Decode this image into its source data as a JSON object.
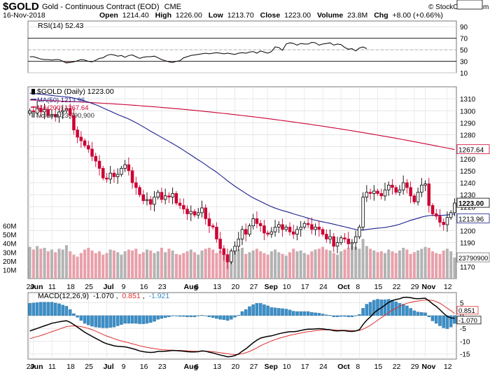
{
  "header": {
    "symbol": "$GOLD",
    "name": "Gold - Continuous Contract (EOD)",
    "exchange": "CME",
    "date": "16-Nov-2018",
    "open_label": "Open",
    "open": "1214.40",
    "high_label": "High",
    "high": "1226.00",
    "low_label": "Low",
    "low": "1213.70",
    "close_label": "Close",
    "close": "1223.00",
    "volume_label": "Volume",
    "volume": "23.8M",
    "chg_label": "Chg",
    "chg": "+8.00 (+0.66%)",
    "credit": "© StockCharts.com"
  },
  "colors": {
    "up": "#000000",
    "down": "#cc0033",
    "ma50": "#1a1f8c",
    "ma200": "#cc0033",
    "vol_up": "#b3b3b3",
    "vol_down": "#e8a0aa",
    "macd_line": "#000000",
    "macd_signal": "#e03030",
    "macd_hist": "#3a8fc8",
    "rsi_fill": "#a87a7a"
  },
  "chart_data": [
    {
      "type": "line",
      "panel": "rsi",
      "legend": "RSI(14) 52.43",
      "last_label": "52.43",
      "ylim": [
        10,
        100
      ],
      "y_ticks": [
        "90",
        "70",
        "50",
        "30",
        "10"
      ],
      "overbought": 70,
      "oversold": 30,
      "values": [
        38,
        38,
        36,
        34,
        33,
        33,
        32,
        33,
        33,
        30,
        27,
        28,
        29,
        31,
        33,
        32,
        30,
        29,
        32,
        35,
        36,
        40,
        42,
        41,
        39,
        40,
        37,
        40,
        41,
        38,
        35,
        37,
        38,
        38,
        39,
        36,
        33,
        31,
        29,
        28,
        30,
        31,
        36,
        38,
        40,
        41,
        42,
        43,
        44,
        43,
        44,
        45,
        44,
        43,
        44,
        43,
        42,
        44,
        45,
        44,
        46,
        47,
        44,
        48,
        46,
        44,
        47,
        55,
        54,
        49,
        60,
        62,
        61,
        58,
        61,
        60,
        60,
        63,
        62,
        58,
        60,
        61,
        62,
        58,
        60,
        59,
        54,
        51,
        52,
        48,
        53,
        55,
        52
      ]
    },
    {
      "type": "candlestick",
      "panel": "price",
      "legend": "$GOLD (Daily) 1223.00",
      "ma50_legend": "MA(50) 1213.96",
      "ma200_legend": "MA(200) 1267.64",
      "volume_legend": "Volume 23,790,900",
      "last_price_label": "1223.00",
      "ma200_label": "1267.64",
      "ma50_label": "1213.96",
      "ylim": [
        1160,
        1320
      ],
      "y_ticks": [
        "1310",
        "1300",
        "1290",
        "1280",
        "1270",
        "1260",
        "1250",
        "1240",
        "1230",
        "1220",
        "1210",
        "1200",
        "1190",
        "1180",
        "1170"
      ],
      "x_labels": [
        {
          "i": 0,
          "text": "29",
          "bold": false
        },
        {
          "i": 1,
          "text": "Jun",
          "bold": true
        },
        {
          "i": 6,
          "text": "11",
          "bold": false
        },
        {
          "i": 11,
          "text": "18",
          "bold": false
        },
        {
          "i": 16,
          "text": "25",
          "bold": false
        },
        {
          "i": 21,
          "text": "Jul",
          "bold": true
        },
        {
          "i": 26,
          "text": "9",
          "bold": false
        },
        {
          "i": 31,
          "text": "16",
          "bold": false
        },
        {
          "i": 36,
          "text": "23",
          "bold": false
        },
        {
          "i": 43,
          "text": "Aug",
          "bold": true
        },
        {
          "i": 46,
          "text": "6",
          "bold": false
        },
        {
          "i": 51,
          "text": "13",
          "bold": false
        },
        {
          "i": 56,
          "text": "20",
          "bold": false
        },
        {
          "i": 61,
          "text": "27",
          "bold": false
        },
        {
          "i": 65,
          "text": "Sep",
          "bold": true
        },
        {
          "i": 70,
          "text": "10",
          "bold": false
        },
        {
          "i": 75,
          "text": "17",
          "bold": false
        },
        {
          "i": 80,
          "text": "24",
          "bold": false
        },
        {
          "i": 85,
          "text": "Oct",
          "bold": true
        },
        {
          "i": 90,
          "text": "8",
          "bold": false
        },
        {
          "i": 95,
          "text": "15",
          "bold": false
        },
        {
          "i": 100,
          "text": "22",
          "bold": false
        },
        {
          "i": 105,
          "text": "29",
          "bold": false
        },
        {
          "i": 108,
          "text": "Nov",
          "bold": true
        },
        {
          "i": 114,
          "text": "12",
          "bold": false
        }
      ],
      "close": [
        1300,
        1298,
        1302,
        1299,
        1301,
        1296,
        1297,
        1295,
        1299,
        1300,
        1302,
        1296,
        1284,
        1278,
        1275,
        1271,
        1268,
        1262,
        1258,
        1252,
        1244,
        1243,
        1248,
        1245,
        1247,
        1252,
        1255,
        1250,
        1240,
        1236,
        1230,
        1225,
        1226,
        1222,
        1228,
        1232,
        1226,
        1229,
        1228,
        1231,
        1223,
        1221,
        1218,
        1214,
        1216,
        1213,
        1215,
        1219,
        1210,
        1204,
        1203,
        1193,
        1185,
        1180,
        1174,
        1183,
        1187,
        1193,
        1201,
        1197,
        1204,
        1210,
        1206,
        1204,
        1198,
        1197,
        1199,
        1203,
        1205,
        1201,
        1203,
        1199,
        1197,
        1201,
        1203,
        1206,
        1205,
        1201,
        1203,
        1201,
        1197,
        1193,
        1195,
        1187,
        1190,
        1194,
        1193,
        1189,
        1190,
        1195,
        1203,
        1228,
        1232,
        1231,
        1233,
        1231,
        1229,
        1234,
        1238,
        1236,
        1232,
        1234,
        1240,
        1236,
        1229,
        1224,
        1232,
        1238,
        1239,
        1221,
        1214,
        1212,
        1207,
        1205,
        1211,
        1215,
        1223
      ],
      "volume_m": [
        36,
        33,
        37,
        34,
        35,
        31,
        33,
        30,
        34,
        33,
        38,
        31,
        27,
        25,
        29,
        33,
        35,
        32,
        29,
        31,
        27,
        29,
        33,
        32,
        30,
        27,
        31,
        33,
        32,
        34,
        28,
        30,
        33,
        32,
        29,
        31,
        35,
        30,
        34,
        32,
        28,
        27,
        29,
        31,
        33,
        30,
        27,
        32,
        34,
        35,
        33,
        29,
        32,
        27,
        25,
        29,
        31,
        33,
        35,
        28,
        30,
        32,
        34,
        31,
        29,
        27,
        31,
        33,
        30,
        28,
        26,
        30,
        34,
        31,
        32,
        29,
        27,
        31,
        33,
        34,
        36,
        33,
        32,
        29,
        27,
        31,
        33,
        35,
        38,
        36,
        34,
        45,
        37,
        34,
        32,
        30,
        31,
        29,
        33,
        31,
        29,
        32,
        35,
        33,
        28,
        30,
        32,
        34,
        36,
        35,
        31,
        29,
        28,
        32,
        34,
        31,
        24
      ],
      "volume_ticks": [
        "60M",
        "50M",
        "40M",
        "30M",
        "20M",
        "10M"
      ],
      "volume_label": "23790900"
    },
    {
      "type": "line",
      "panel": "macd",
      "legend_prefix": "MACD(12,26,9)",
      "legend_macd": "-1.070",
      "legend_signal": "0.851",
      "legend_hist": "-1.921",
      "signal_label": "0.851",
      "macd_label": "-1.070",
      "ylim": [
        -17,
        9
      ],
      "y_ticks": [
        "5",
        "0",
        "-5",
        "-10",
        "-15"
      ],
      "macd": [
        -6,
        -5.5,
        -5,
        -4.5,
        -4,
        -3.5,
        -3,
        -2.7,
        -2.4,
        -2.2,
        -2.0,
        -2.6,
        -3.5,
        -4.5,
        -5.5,
        -6.5,
        -7.3,
        -8.1,
        -8.9,
        -9.6,
        -10.4,
        -11,
        -11.4,
        -11.8,
        -12,
        -12.1,
        -12.2,
        -12.5,
        -12.9,
        -13.3,
        -13.8,
        -14.1,
        -14.3,
        -14.4,
        -14.3,
        -14,
        -14,
        -13.9,
        -13.8,
        -13.6,
        -13.7,
        -13.8,
        -13.9,
        -14.1,
        -14.2,
        -14.2,
        -14.1,
        -13.8,
        -13.9,
        -14.3,
        -14.6,
        -15,
        -15.4,
        -15.7,
        -16.1,
        -16,
        -15.6,
        -15,
        -13.9,
        -13,
        -11.8,
        -10.6,
        -9.6,
        -8.8,
        -8.4,
        -8.1,
        -7.9,
        -7.5,
        -7.1,
        -6.8,
        -6.5,
        -6.3,
        -6.3,
        -6.1,
        -5.8,
        -5.5,
        -5.3,
        -5.3,
        -5.2,
        -5.1,
        -5.2,
        -5.4,
        -5.5,
        -5.9,
        -6,
        -5.9,
        -5.9,
        -6.1,
        -6.2,
        -6,
        -5.5,
        -3.5,
        -1.8,
        -0.5,
        1,
        2.2,
        3.1,
        4.1,
        5.2,
        5.9,
        6.3,
        6.6,
        7.1,
        7.2,
        7,
        6.7,
        6.6,
        6.7,
        6.8,
        5.8,
        4.6,
        3.6,
        2.3,
        0.9,
        -0.3,
        -0.9,
        -1.07
      ],
      "signal": [
        -9,
        -8.6,
        -8.2,
        -7.8,
        -7.3,
        -6.8,
        -6.3,
        -5.8,
        -5.3,
        -4.8,
        -4.3,
        -4.1,
        -4,
        -4.1,
        -4.3,
        -4.6,
        -5,
        -5.5,
        -6.1,
        -6.7,
        -7.4,
        -8,
        -8.5,
        -9,
        -9.5,
        -9.9,
        -10.3,
        -10.6,
        -11,
        -11.4,
        -11.8,
        -12.1,
        -12.4,
        -12.7,
        -12.9,
        -13.1,
        -13.3,
        -13.4,
        -13.5,
        -13.5,
        -13.6,
        -13.6,
        -13.7,
        -13.8,
        -13.9,
        -13.9,
        -14,
        -13.9,
        -13.9,
        -14,
        -14.1,
        -14.3,
        -14.5,
        -14.7,
        -14.9,
        -15.1,
        -15.2,
        -15.1,
        -14.9,
        -14.5,
        -14,
        -13.3,
        -12.6,
        -11.8,
        -11.1,
        -10.5,
        -9.9,
        -9.4,
        -8.9,
        -8.5,
        -8.1,
        -7.7,
        -7.4,
        -7.1,
        -6.8,
        -6.5,
        -6.3,
        -6.1,
        -5.9,
        -5.7,
        -5.6,
        -5.6,
        -5.6,
        -5.6,
        -5.7,
        -5.7,
        -5.7,
        -5.8,
        -5.9,
        -5.9,
        -5.8,
        -5.3,
        -4.6,
        -3.8,
        -2.8,
        -1.8,
        -0.8,
        0.2,
        1.2,
        2.1,
        2.9,
        3.6,
        4.3,
        4.8,
        5.2,
        5.5,
        5.7,
        5.9,
        6.1,
        6.1,
        5.9,
        5.5,
        4.8,
        3.9,
        2.9,
        1.9,
        0.851
      ]
    }
  ]
}
